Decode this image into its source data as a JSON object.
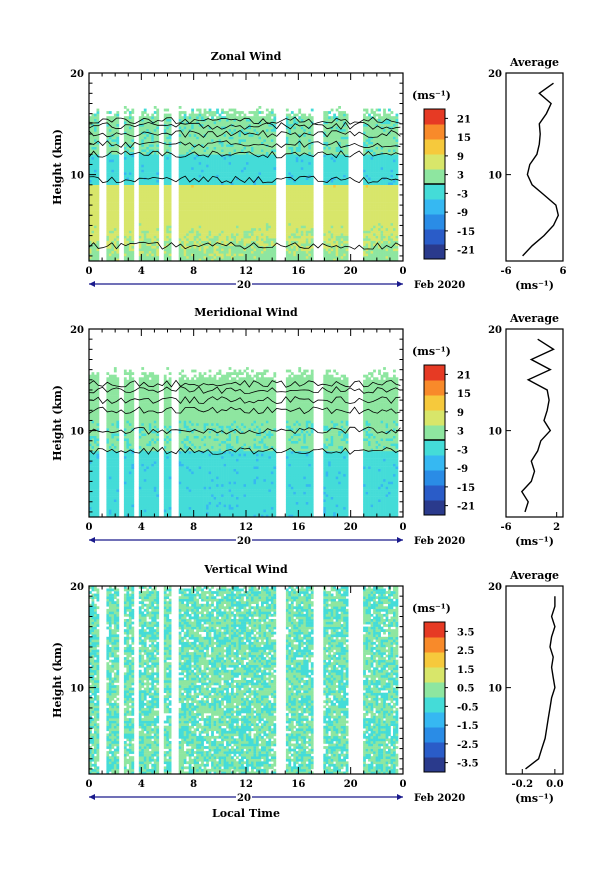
{
  "chart_data": [
    {
      "type": "heatmap",
      "title": "Zonal Wind",
      "xlabel": "",
      "ylabel": "Height (km)",
      "units": "(ms⁻¹)",
      "xlim": [
        0,
        24
      ],
      "ylim": [
        1.5,
        20
      ],
      "x_ticks": [
        "0",
        "4",
        "8",
        "12",
        "16",
        "20",
        "0"
      ],
      "x_tick_values": [
        0,
        4,
        8,
        12,
        16,
        20,
        24
      ],
      "y_ticks": [
        "10",
        "20"
      ],
      "date_label": "20",
      "month_label": "Feb 2020",
      "colorbar_ticks": [
        "21",
        "15",
        "9",
        "3",
        "-3",
        "-9",
        "-15",
        "-21"
      ],
      "colorbar_range": [
        -24,
        24
      ],
      "contour_at": 0,
      "data_gaps_hours": [
        [
          0.7,
          1.4
        ],
        [
          2.2,
          2.6
        ],
        [
          3.4,
          3.8
        ],
        [
          5.3,
          5.8
        ],
        [
          6.3,
          6.8
        ],
        [
          14.3,
          15.0
        ],
        [
          17.2,
          17.9
        ],
        [
          19.9,
          21.0
        ],
        [
          23.6,
          24.0
        ]
      ],
      "top_height_km": 15.5,
      "profile_heights_km": [
        2,
        3,
        4,
        5,
        6,
        7,
        8,
        9,
        10,
        11,
        12,
        13,
        14,
        15,
        16,
        17,
        18,
        19
      ],
      "profile_values": [
        -2.5,
        -0.5,
        2.0,
        4.0,
        5.0,
        4.5,
        2.0,
        -0.5,
        -1.5,
        -1.0,
        0.5,
        1.0,
        1.2,
        1.0,
        2.5,
        3.5,
        1.0,
        4.0
      ]
    },
    {
      "type": "heatmap",
      "title": "Meridional Wind",
      "xlabel": "",
      "ylabel": "Height (km)",
      "units": "(ms⁻¹)",
      "xlim": [
        0,
        24
      ],
      "ylim": [
        1.5,
        20
      ],
      "x_ticks": [
        "0",
        "4",
        "8",
        "12",
        "16",
        "20",
        "0"
      ],
      "x_tick_values": [
        0,
        4,
        8,
        12,
        16,
        20,
        24
      ],
      "y_ticks": [
        "10",
        "20"
      ],
      "date_label": "20",
      "month_label": "Feb 2020",
      "colorbar_ticks": [
        "21",
        "15",
        "9",
        "3",
        "-3",
        "-9",
        "-15",
        "-21"
      ],
      "colorbar_range": [
        -24,
        24
      ],
      "contour_at": 0,
      "data_gaps_hours": [
        [
          0.7,
          1.4
        ],
        [
          2.2,
          2.6
        ],
        [
          3.4,
          3.8
        ],
        [
          5.3,
          5.8
        ],
        [
          6.3,
          6.8
        ],
        [
          14.3,
          15.0
        ],
        [
          17.2,
          17.9
        ],
        [
          19.9,
          21.0
        ],
        [
          23.6,
          24.0
        ]
      ],
      "top_height_km": 15.0,
      "profile_heights_km": [
        2,
        3,
        4,
        5,
        6,
        7,
        8,
        9,
        10,
        11,
        12,
        13,
        14,
        15,
        16,
        17,
        18,
        19
      ],
      "profile_values": [
        -3.0,
        -2.5,
        -3.5,
        -2.0,
        -1.5,
        -2.0,
        -1.0,
        -0.5,
        1.0,
        0.0,
        0.5,
        0.8,
        0.5,
        -2.5,
        1.0,
        -2.0,
        1.5,
        -1.0
      ]
    },
    {
      "type": "heatmap",
      "title": "Vertical Wind",
      "xlabel": "Local Time",
      "ylabel": "Height (km)",
      "units": "(ms⁻¹)",
      "xlim": [
        0,
        24
      ],
      "ylim": [
        1.5,
        20
      ],
      "x_ticks": [
        "0",
        "4",
        "8",
        "12",
        "16",
        "20",
        "0"
      ],
      "x_tick_values": [
        0,
        4,
        8,
        12,
        16,
        20,
        24
      ],
      "y_ticks": [
        "10",
        "20"
      ],
      "date_label": "20",
      "month_label": "Feb 2020",
      "colorbar_ticks": [
        "3.5",
        "2.5",
        "1.5",
        "0.5",
        "-0.5",
        "-1.5",
        "-2.5",
        "-3.5"
      ],
      "colorbar_range": [
        -4,
        4
      ],
      "contour_at": null,
      "data_gaps_hours": [
        [
          0.7,
          1.4
        ],
        [
          2.2,
          2.6
        ],
        [
          3.4,
          3.8
        ],
        [
          5.3,
          5.8
        ],
        [
          6.3,
          6.8
        ],
        [
          14.3,
          15.0
        ],
        [
          17.2,
          17.9
        ],
        [
          19.9,
          21.0
        ],
        [
          23.6,
          24.0
        ]
      ],
      "top_height_km": 19.5,
      "profile_heights_km": [
        2,
        3,
        4,
        5,
        6,
        7,
        8,
        9,
        10,
        11,
        12,
        13,
        14,
        15,
        16,
        17,
        18,
        19
      ],
      "profile_values": [
        -0.18,
        -0.1,
        -0.08,
        -0.06,
        -0.05,
        -0.04,
        -0.03,
        -0.02,
        0.0,
        -0.01,
        -0.02,
        -0.01,
        -0.03,
        -0.02,
        0.0,
        -0.02,
        0.0,
        0.0
      ]
    }
  ],
  "profile_axes": [
    {
      "title": "Average",
      "units": "(ms⁻¹)",
      "x_ticks": [
        "-6",
        "6"
      ],
      "x_tick_values": [
        -6,
        6
      ],
      "xlim": [
        -6,
        6
      ],
      "y_ticks": [
        "10",
        "20"
      ]
    },
    {
      "title": "Average",
      "units": "(ms⁻¹)",
      "x_ticks": [
        "-6",
        "2"
      ],
      "x_tick_values": [
        -6,
        2
      ],
      "xlim": [
        -6,
        3
      ],
      "y_ticks": [
        "10",
        "20"
      ]
    },
    {
      "title": "Average",
      "units": "(ms⁻¹)",
      "x_ticks": [
        "-0.2",
        "0.0"
      ],
      "x_tick_values": [
        -0.2,
        0.0
      ],
      "xlim": [
        -0.3,
        0.05
      ],
      "y_ticks": [
        "10",
        "20"
      ]
    }
  ],
  "colors": {
    "scale": [
      "#2a3a8c",
      "#2a5cc8",
      "#2a8ce6",
      "#36b8f2",
      "#44dcd8",
      "#8ee6a0",
      "#d8e66a",
      "#f6c93c",
      "#f88a2a",
      "#e63a24"
    ],
    "axis": "#000000",
    "nav": "#1a1a8c"
  }
}
